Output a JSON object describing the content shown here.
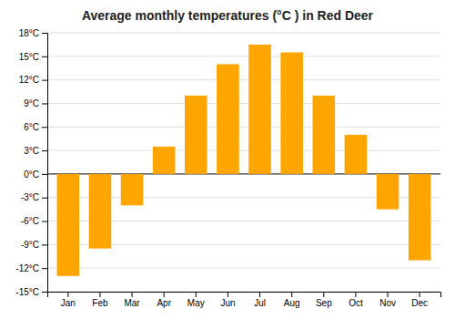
{
  "chart_data": {
    "type": "bar",
    "title": "Average monthly temperatures (°C ) in Red Deer",
    "categories": [
      "Jan",
      "Feb",
      "Mar",
      "Apr",
      "May",
      "Jun",
      "Jul",
      "Aug",
      "Sep",
      "Oct",
      "Nov",
      "Dec"
    ],
    "values": [
      -13,
      -9.5,
      -4,
      3.5,
      10,
      14,
      16.5,
      15.5,
      10,
      5,
      -4.5,
      -11
    ],
    "color": "#FFA500",
    "ylim": [
      -15,
      18
    ],
    "yticks": [
      {
        "value": -15,
        "label": "-15°C"
      },
      {
        "value": -12,
        "label": "-12°C"
      },
      {
        "value": -9,
        "label": "-9°C"
      },
      {
        "value": -6,
        "label": "-6°C"
      },
      {
        "value": -3,
        "label": "-3°C"
      },
      {
        "value": 0,
        "label": "0°C"
      },
      {
        "value": 3,
        "label": "3°C"
      },
      {
        "value": 6,
        "label": "6°C"
      },
      {
        "value": 9,
        "label": "9°C"
      },
      {
        "value": 12,
        "label": "12°C"
      },
      {
        "value": 15,
        "label": "15°C"
      },
      {
        "value": 18,
        "label": "18°C"
      }
    ],
    "grid": true
  }
}
